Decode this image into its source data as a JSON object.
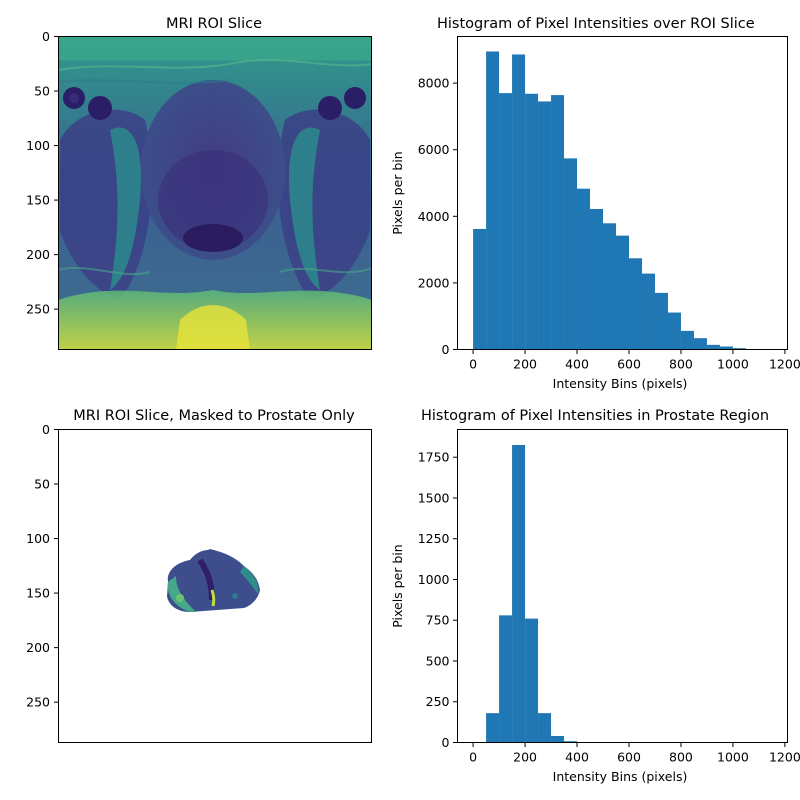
{
  "chart_data": [
    {
      "type": "image",
      "title": "MRI ROI Slice",
      "ylim": [
        0,
        287
      ],
      "y_ticks": [
        0,
        50,
        100,
        150,
        200,
        250
      ],
      "colormap": "viridis"
    },
    {
      "type": "bar",
      "title": "Histogram of Pixel Intensities over ROI Slice",
      "xlabel": "Intensity Bins (pixels)",
      "ylabel": "Pixels per bin",
      "xlim": [
        -60,
        1210
      ],
      "ylim": [
        0,
        9400
      ],
      "x_ticks": [
        0,
        200,
        400,
        600,
        800,
        1000,
        1200
      ],
      "y_ticks": [
        0,
        2000,
        4000,
        6000,
        8000
      ],
      "bin_width": 50,
      "bin_starts": [
        0,
        50,
        100,
        150,
        200,
        250,
        300,
        350,
        400,
        450,
        500,
        550,
        600,
        650,
        700,
        750,
        800,
        850,
        900,
        950,
        1000,
        1050,
        1100
      ],
      "values": [
        3620,
        8950,
        7700,
        8860,
        7680,
        7450,
        7640,
        5740,
        4830,
        4220,
        3790,
        3420,
        2740,
        2280,
        1700,
        1110,
        560,
        340,
        140,
        90,
        40,
        15,
        5
      ],
      "color": "#1f77b4"
    },
    {
      "type": "image",
      "title": "MRI ROI Slice, Masked to Prostate Only",
      "ylim": [
        0,
        287
      ],
      "y_ticks": [
        0,
        50,
        100,
        150,
        200,
        250
      ],
      "colormap": "viridis"
    },
    {
      "type": "bar",
      "title": "Histogram of Pixel Intensities in Prostate Region",
      "xlabel": "Intensity Bins (pixels)",
      "ylabel": "Pixels per bin",
      "xlim": [
        -60,
        1210
      ],
      "ylim": [
        0,
        1920
      ],
      "x_ticks": [
        0,
        200,
        400,
        600,
        800,
        1000,
        1200
      ],
      "y_ticks": [
        0,
        250,
        500,
        750,
        1000,
        1250,
        1500,
        1750
      ],
      "bin_width": 50,
      "bin_starts": [
        0,
        50,
        100,
        150,
        200,
        250,
        300,
        350,
        400,
        450,
        500,
        550,
        600,
        650,
        700,
        750,
        800,
        850,
        900,
        950,
        1000,
        1050,
        1100
      ],
      "values": [
        0,
        180,
        780,
        1825,
        760,
        180,
        40,
        8,
        0,
        0,
        0,
        0,
        0,
        0,
        0,
        0,
        0,
        0,
        0,
        0,
        0,
        0,
        0
      ],
      "color": "#1f77b4"
    }
  ]
}
